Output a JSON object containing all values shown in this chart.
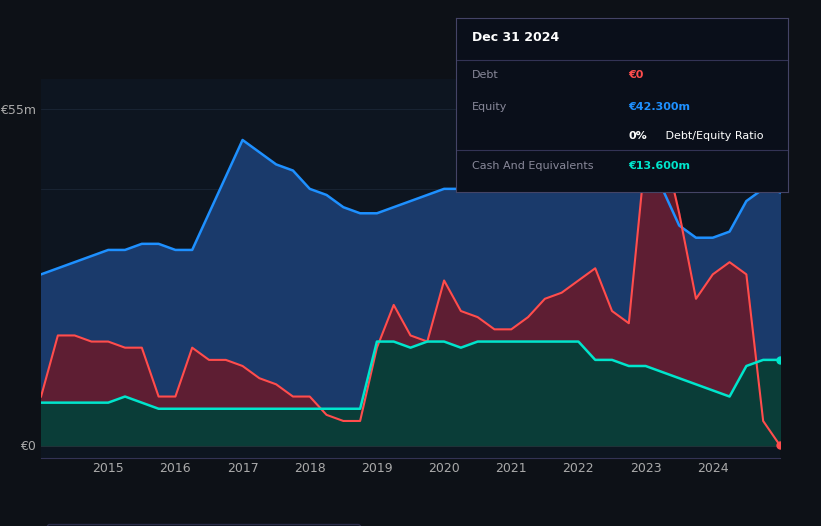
{
  "bg_color": "#0d1117",
  "plot_bg_color": "#0d1520",
  "ylabel_top": "€55m",
  "ylabel_bottom": "€0",
  "x_ticks": [
    2015,
    2016,
    2017,
    2018,
    2019,
    2020,
    2021,
    2022,
    2023,
    2024
  ],
  "equity_color": "#1e90ff",
  "equity_fill": "#1a3a6b",
  "debt_color": "#ff4d4d",
  "debt_fill": "#6b1a2a",
  "cash_color": "#00e5cc",
  "cash_fill": "#0a3d38",
  "legend_bg": "#0d1520",
  "legend_border": "#333355",
  "info_box_bg": "#0a0f1a",
  "info_box_border": "#444466",
  "info_box_title": "Dec 31 2024",
  "info_debt_label": "Debt",
  "info_debt_value": "€0",
  "info_equity_label": "Equity",
  "info_equity_value": "€42.300m",
  "info_ratio_value": "0%",
  "info_ratio_label": " Debt/Equity Ratio",
  "info_cash_label": "Cash And Equivalents",
  "info_cash_value": "€13.600m",
  "t": [
    2014.0,
    2014.25,
    2014.5,
    2014.75,
    2015.0,
    2015.25,
    2015.5,
    2015.75,
    2016.0,
    2016.25,
    2016.5,
    2016.75,
    2017.0,
    2017.25,
    2017.5,
    2017.75,
    2018.0,
    2018.25,
    2018.5,
    2018.75,
    2019.0,
    2019.25,
    2019.5,
    2019.75,
    2020.0,
    2020.25,
    2020.5,
    2020.75,
    2021.0,
    2021.25,
    2021.5,
    2021.75,
    2022.0,
    2022.25,
    2022.5,
    2022.75,
    2023.0,
    2023.25,
    2023.5,
    2023.75,
    2024.0,
    2024.25,
    2024.5,
    2024.75,
    2025.0
  ],
  "equity": [
    28,
    29,
    30,
    31,
    32,
    32,
    33,
    33,
    32,
    32,
    38,
    44,
    50,
    48,
    46,
    45,
    42,
    41,
    39,
    38,
    38,
    39,
    40,
    41,
    42,
    42,
    43,
    43,
    43,
    43,
    44,
    44,
    44,
    44,
    45,
    46,
    47,
    42,
    36,
    34,
    34,
    35,
    40,
    42,
    42
  ],
  "debt": [
    8,
    18,
    18,
    17,
    17,
    16,
    16,
    8,
    8,
    16,
    14,
    14,
    13,
    11,
    10,
    8,
    8,
    5,
    4,
    4,
    16,
    23,
    18,
    17,
    27,
    22,
    21,
    19,
    19,
    21,
    24,
    25,
    27,
    29,
    22,
    20,
    48,
    50,
    38,
    24,
    28,
    30,
    28,
    4,
    0
  ],
  "cash": [
    7,
    7,
    7,
    7,
    7,
    8,
    7,
    6,
    6,
    6,
    6,
    6,
    6,
    6,
    6,
    6,
    6,
    6,
    6,
    6,
    17,
    17,
    16,
    17,
    17,
    16,
    17,
    17,
    17,
    17,
    17,
    17,
    17,
    14,
    14,
    13,
    13,
    12,
    11,
    10,
    9,
    8,
    13,
    14,
    14
  ]
}
